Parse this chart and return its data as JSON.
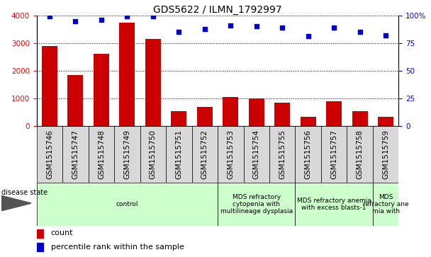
{
  "title": "GDS5622 / ILMN_1792997",
  "samples": [
    "GSM1515746",
    "GSM1515747",
    "GSM1515748",
    "GSM1515749",
    "GSM1515750",
    "GSM1515751",
    "GSM1515752",
    "GSM1515753",
    "GSM1515754",
    "GSM1515755",
    "GSM1515756",
    "GSM1515757",
    "GSM1515758",
    "GSM1515759"
  ],
  "counts": [
    2900,
    1850,
    2620,
    3750,
    3150,
    530,
    680,
    1050,
    1000,
    850,
    320,
    900,
    530,
    330
  ],
  "percentiles": [
    99,
    95,
    96,
    99,
    99,
    85,
    88,
    91,
    90,
    89,
    81,
    89,
    85,
    82
  ],
  "bar_color": "#cc0000",
  "dot_color": "#0000cc",
  "ylim_left": [
    0,
    4000
  ],
  "ylim_right": [
    0,
    100
  ],
  "yticks_left": [
    0,
    1000,
    2000,
    3000,
    4000
  ],
  "yticks_right": [
    0,
    25,
    50,
    75,
    100
  ],
  "yticklabels_right": [
    "0",
    "25",
    "50",
    "75",
    "100%"
  ],
  "disease_groups": [
    {
      "label": "control",
      "start": 0,
      "end": 7,
      "color": "#ccffcc"
    },
    {
      "label": "MDS refractory\ncytopenia with\nmultilineage dysplasia",
      "start": 7,
      "end": 10,
      "color": "#ccffcc"
    },
    {
      "label": "MDS refractory anemia\nwith excess blasts-1",
      "start": 10,
      "end": 13,
      "color": "#ccffcc"
    },
    {
      "label": "MDS\nrefractory ane\nmia with",
      "start": 13,
      "end": 14,
      "color": "#ccffcc"
    }
  ],
  "disease_state_label": "disease state",
  "legend_count_label": "count",
  "legend_percentile_label": "percentile rank within the sample",
  "title_fontsize": 10,
  "tick_fontsize": 7.5,
  "label_fontsize": 7,
  "xtick_cell_color": "#d8d8d8",
  "bg_color": "#ffffff",
  "grid_color": "black",
  "grid_linestyle": ":",
  "grid_linewidth": 0.7
}
